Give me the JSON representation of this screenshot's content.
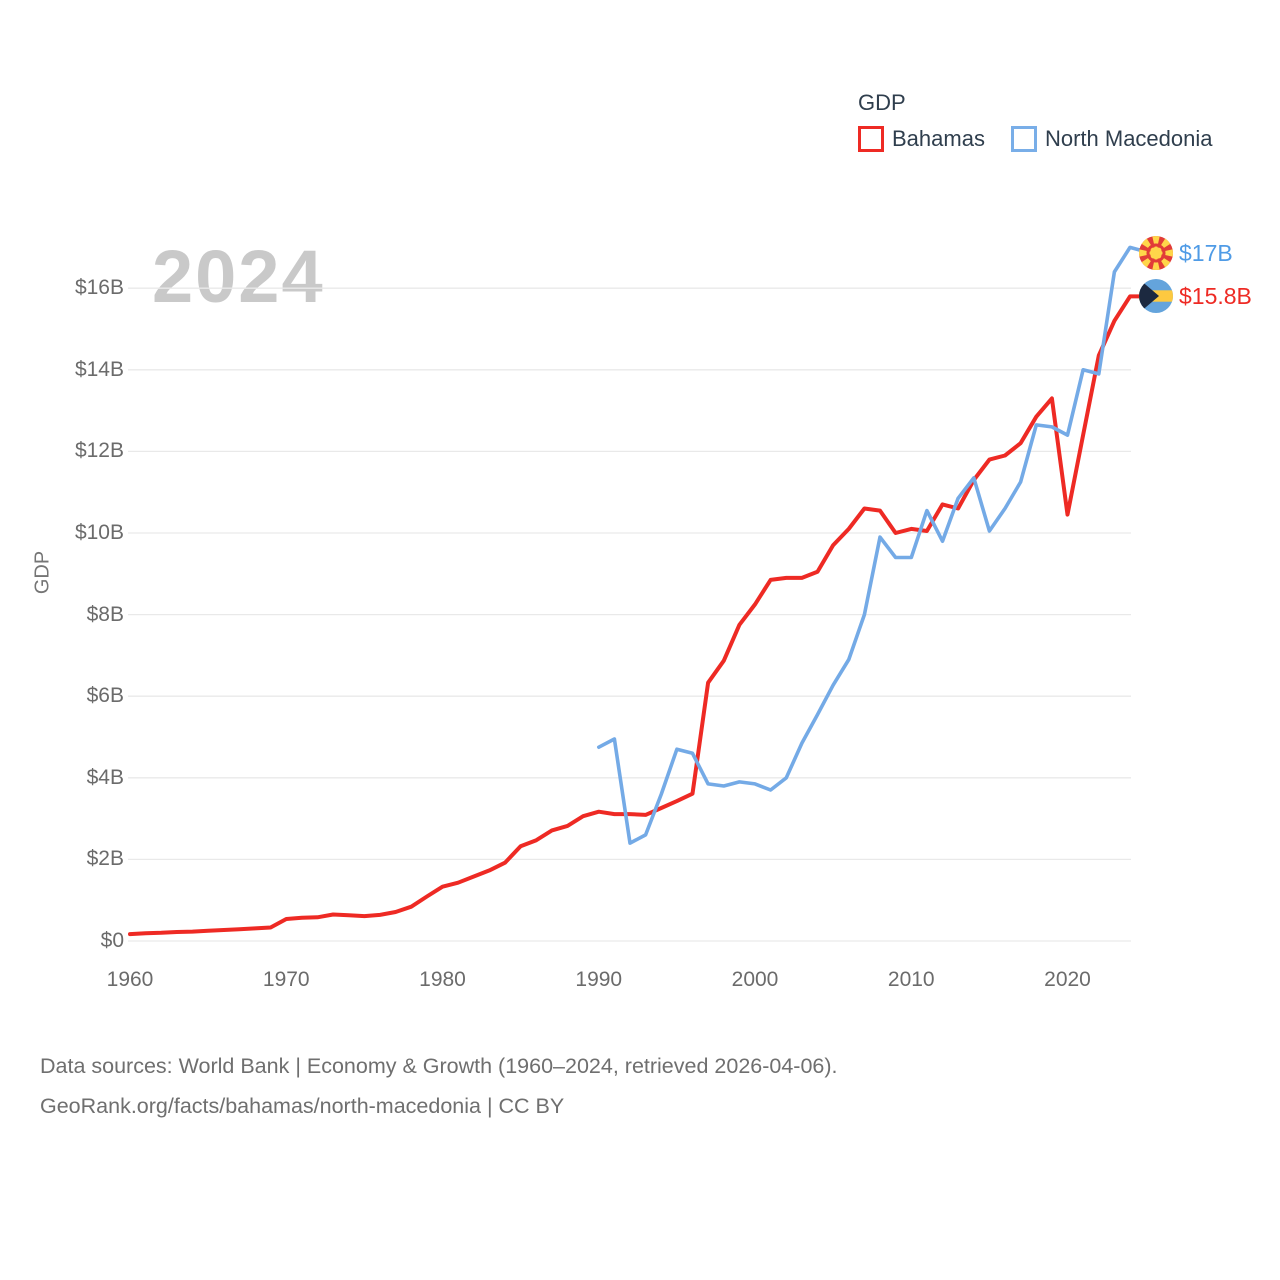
{
  "watermark_year": "2024",
  "legend": {
    "title": "GDP",
    "items": [
      {
        "label": "Bahamas",
        "color": "#ee2a24"
      },
      {
        "label": "North Macedonia",
        "color": "#79aee8"
      }
    ]
  },
  "y_axis": {
    "title": "GDP",
    "tick_values": [
      0,
      2,
      4,
      6,
      8,
      10,
      12,
      14,
      16
    ],
    "tick_labels": [
      "$0",
      "$2B",
      "$4B",
      "$6B",
      "$8B",
      "$10B",
      "$12B",
      "$14B",
      "$16B"
    ]
  },
  "x_axis": {
    "tick_values": [
      1960,
      1970,
      1980,
      1990,
      2000,
      2010,
      2020
    ],
    "tick_labels": [
      "1960",
      "1970",
      "1980",
      "1990",
      "2000",
      "2010",
      "2020"
    ]
  },
  "end_labels": [
    {
      "series": "North Macedonia",
      "text": "$17B",
      "color": "#4f9be6",
      "flag_icon": "north-macedonia-flag-icon"
    },
    {
      "series": "Bahamas",
      "text": "$15.8B",
      "color": "#ee2a24",
      "flag_icon": "bahamas-flag-icon"
    }
  ],
  "footer": {
    "line1": "Data sources: World Bank | Economy & Growth (1960–2024, retrieved 2026-04-06).",
    "line2": "GeoRank.org/facts/bahamas/north-macedonia | CC BY"
  },
  "chart_data": {
    "type": "line",
    "title": "GDP",
    "xlabel": "",
    "ylabel": "GDP",
    "xlim": [
      1960,
      2024
    ],
    "ylim": [
      0,
      17.4
    ],
    "grid": true,
    "legend_position": "top-right",
    "gridline_color": "#e9e9e9",
    "series": [
      {
        "name": "Bahamas",
        "color": "#ee2a24",
        "final_value_label": "$15.8B",
        "points": [
          [
            1960,
            0.17
          ],
          [
            1961,
            0.19
          ],
          [
            1962,
            0.2
          ],
          [
            1963,
            0.22
          ],
          [
            1964,
            0.23
          ],
          [
            1965,
            0.25
          ],
          [
            1966,
            0.27
          ],
          [
            1967,
            0.29
          ],
          [
            1968,
            0.31
          ],
          [
            1969,
            0.33
          ],
          [
            1970,
            0.54
          ],
          [
            1971,
            0.57
          ],
          [
            1972,
            0.58
          ],
          [
            1973,
            0.65
          ],
          [
            1974,
            0.63
          ],
          [
            1975,
            0.61
          ],
          [
            1976,
            0.64
          ],
          [
            1977,
            0.71
          ],
          [
            1978,
            0.84
          ],
          [
            1979,
            1.09
          ],
          [
            1980,
            1.33
          ],
          [
            1981,
            1.43
          ],
          [
            1982,
            1.58
          ],
          [
            1983,
            1.73
          ],
          [
            1984,
            1.92
          ],
          [
            1985,
            2.32
          ],
          [
            1986,
            2.47
          ],
          [
            1987,
            2.71
          ],
          [
            1988,
            2.82
          ],
          [
            1989,
            3.06
          ],
          [
            1990,
            3.17
          ],
          [
            1991,
            3.11
          ],
          [
            1992,
            3.11
          ],
          [
            1993,
            3.09
          ],
          [
            1994,
            3.26
          ],
          [
            1995,
            3.43
          ],
          [
            1996,
            3.61
          ],
          [
            1997,
            6.33
          ],
          [
            1998,
            6.87
          ],
          [
            1999,
            7.75
          ],
          [
            2000,
            8.25
          ],
          [
            2001,
            8.85
          ],
          [
            2002,
            8.9
          ],
          [
            2003,
            8.9
          ],
          [
            2004,
            9.05
          ],
          [
            2005,
            9.7
          ],
          [
            2006,
            10.1
          ],
          [
            2007,
            10.6
          ],
          [
            2008,
            10.55
          ],
          [
            2009,
            10.0
          ],
          [
            2010,
            10.1
          ],
          [
            2011,
            10.05
          ],
          [
            2012,
            10.7
          ],
          [
            2013,
            10.6
          ],
          [
            2014,
            11.3
          ],
          [
            2015,
            11.8
          ],
          [
            2016,
            11.9
          ],
          [
            2017,
            12.2
          ],
          [
            2018,
            12.85
          ],
          [
            2019,
            13.3
          ],
          [
            2020,
            10.45
          ],
          [
            2021,
            12.4
          ],
          [
            2022,
            14.35
          ],
          [
            2023,
            15.2
          ],
          [
            2024,
            15.8
          ]
        ]
      },
      {
        "name": "North Macedonia",
        "color": "#74aae6",
        "final_value_label": "$17B",
        "points": [
          [
            1990,
            4.75
          ],
          [
            1991,
            4.95
          ],
          [
            1992,
            2.4
          ],
          [
            1993,
            2.6
          ],
          [
            1994,
            3.6
          ],
          [
            1995,
            4.7
          ],
          [
            1996,
            4.6
          ],
          [
            1997,
            3.85
          ],
          [
            1998,
            3.8
          ],
          [
            1999,
            3.9
          ],
          [
            2000,
            3.85
          ],
          [
            2001,
            3.7
          ],
          [
            2002,
            4.0
          ],
          [
            2003,
            4.85
          ],
          [
            2004,
            5.55
          ],
          [
            2005,
            6.27
          ],
          [
            2006,
            6.9
          ],
          [
            2007,
            8.0
          ],
          [
            2008,
            9.9
          ],
          [
            2009,
            9.4
          ],
          [
            2010,
            9.4
          ],
          [
            2011,
            10.55
          ],
          [
            2012,
            9.8
          ],
          [
            2013,
            10.85
          ],
          [
            2014,
            11.35
          ],
          [
            2015,
            10.05
          ],
          [
            2016,
            10.6
          ],
          [
            2017,
            11.25
          ],
          [
            2018,
            12.65
          ],
          [
            2019,
            12.6
          ],
          [
            2020,
            12.4
          ],
          [
            2021,
            14.0
          ],
          [
            2022,
            13.9
          ],
          [
            2023,
            16.4
          ],
          [
            2024,
            17.0
          ]
        ]
      }
    ]
  }
}
